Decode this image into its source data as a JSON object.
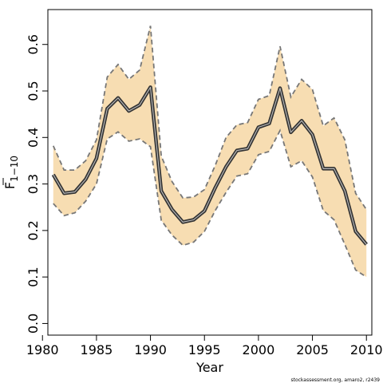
{
  "chart_data": {
    "type": "line",
    "xlabel": "Year",
    "ylabel_main": "F",
    "ylabel_sub": "1−10",
    "xlim": [
      1980.5,
      2010.5
    ],
    "ylim": [
      -0.025,
      0.675
    ],
    "xticks": [
      1980,
      1985,
      1990,
      1995,
      2000,
      2005,
      2010
    ],
    "yticks": [
      0.0,
      0.1,
      0.2,
      0.3,
      0.4,
      0.5,
      0.6
    ],
    "ytick_labels": [
      "0.0",
      "0.1",
      "0.2",
      "0.3",
      "0.4",
      "0.5",
      "0.6"
    ],
    "band_color": "#f7ddb2",
    "line_color": "#333333",
    "bound_color": "#777777",
    "x": [
      1981,
      1982,
      1983,
      1984,
      1985,
      1986,
      1987,
      1988,
      1989,
      1990,
      1991,
      1992,
      1993,
      1994,
      1995,
      1996,
      1997,
      1998,
      1999,
      2000,
      2001,
      2002,
      2003,
      2004,
      2005,
      2006,
      2007,
      2008,
      2009,
      2010
    ],
    "series": [
      {
        "role": "estimate",
        "values": [
          0.32,
          0.28,
          0.283,
          0.31,
          0.355,
          0.462,
          0.485,
          0.457,
          0.47,
          0.508,
          0.285,
          0.245,
          0.218,
          0.223,
          0.242,
          0.292,
          0.337,
          0.372,
          0.376,
          0.422,
          0.43,
          0.506,
          0.411,
          0.436,
          0.406,
          0.333,
          0.333,
          0.285,
          0.198,
          0.17
        ]
      },
      {
        "role": "upper",
        "values": [
          0.382,
          0.33,
          0.33,
          0.35,
          0.395,
          0.53,
          0.557,
          0.525,
          0.545,
          0.64,
          0.36,
          0.305,
          0.27,
          0.272,
          0.288,
          0.34,
          0.4,
          0.427,
          0.432,
          0.482,
          0.49,
          0.596,
          0.487,
          0.525,
          0.503,
          0.425,
          0.442,
          0.395,
          0.28,
          0.245
        ]
      },
      {
        "role": "lower",
        "values": [
          0.258,
          0.232,
          0.238,
          0.263,
          0.3,
          0.397,
          0.412,
          0.392,
          0.397,
          0.38,
          0.222,
          0.19,
          0.168,
          0.175,
          0.198,
          0.243,
          0.282,
          0.317,
          0.322,
          0.363,
          0.37,
          0.415,
          0.337,
          0.35,
          0.315,
          0.243,
          0.223,
          0.17,
          0.115,
          0.1
        ]
      }
    ]
  },
  "footer": "stockassessment.org, amaro2, r2439"
}
